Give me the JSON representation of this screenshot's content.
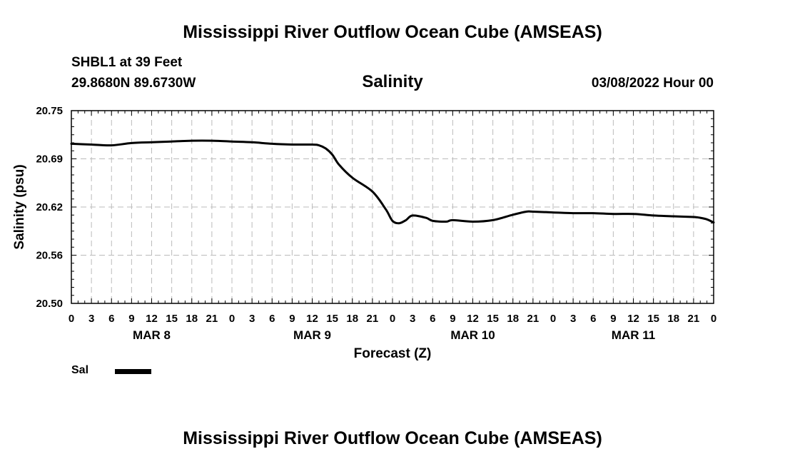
{
  "header": {
    "title": "Mississippi River Outflow Ocean Cube (AMSEAS)",
    "station": "SHBL1 at 39 Feet",
    "coords": "29.8680N  89.6730W",
    "plot_title": "Salinity",
    "run_time": "03/08/2022 Hour 00"
  },
  "footer": {
    "title": "Mississippi River Outflow Ocean Cube (AMSEAS)"
  },
  "legend": {
    "label": "Sal",
    "color": "#000000"
  },
  "chart_data": {
    "type": "line",
    "title": "Salinity",
    "xlabel": "Forecast (Z)",
    "ylabel": "Salinity (psu)",
    "x_unit": "hours from 03/08/2022 00Z",
    "xlim": [
      0,
      96
    ],
    "ylim": [
      20.5,
      20.75
    ],
    "y_ticks": [
      "20.50",
      "20.56",
      "20.62",
      "20.69",
      "20.75"
    ],
    "x_tick_labels": [
      "0",
      "3",
      "6",
      "9",
      "12",
      "15",
      "18",
      "21",
      "0",
      "3",
      "6",
      "9",
      "12",
      "15",
      "18",
      "21",
      "0",
      "3",
      "6",
      "9",
      "12",
      "15",
      "18",
      "21",
      "0",
      "3",
      "6",
      "9",
      "12",
      "15",
      "18",
      "21",
      "0"
    ],
    "day_labels": [
      {
        "label": "MAR 8",
        "at_hour": 12
      },
      {
        "label": "MAR 9",
        "at_hour": 36
      },
      {
        "label": "MAR 10",
        "at_hour": 60
      },
      {
        "label": "MAR 11",
        "at_hour": 84
      }
    ],
    "grid": true,
    "legend_position": "bottom-left",
    "series": [
      {
        "name": "Sal",
        "color": "#000000",
        "x": [
          0,
          3,
          6,
          9,
          12,
          15,
          18,
          21,
          24,
          27,
          30,
          33,
          36,
          37,
          38,
          39,
          40,
          42,
          45,
          47,
          48,
          49,
          50,
          51,
          53,
          54,
          56,
          57,
          60,
          63,
          66,
          68,
          69,
          72,
          75,
          78,
          81,
          84,
          87,
          90,
          93,
          94,
          95,
          96
        ],
        "y": [
          20.707,
          20.706,
          20.705,
          20.708,
          20.709,
          20.71,
          20.711,
          20.711,
          20.71,
          20.709,
          20.707,
          20.706,
          20.706,
          20.705,
          20.701,
          20.693,
          20.68,
          20.663,
          20.645,
          20.622,
          20.607,
          20.604,
          20.608,
          20.614,
          20.611,
          20.607,
          20.606,
          20.608,
          20.606,
          20.608,
          20.615,
          20.619,
          20.619,
          20.618,
          20.617,
          20.617,
          20.616,
          20.616,
          20.614,
          20.613,
          20.612,
          20.611,
          20.609,
          20.605
        ]
      }
    ]
  }
}
